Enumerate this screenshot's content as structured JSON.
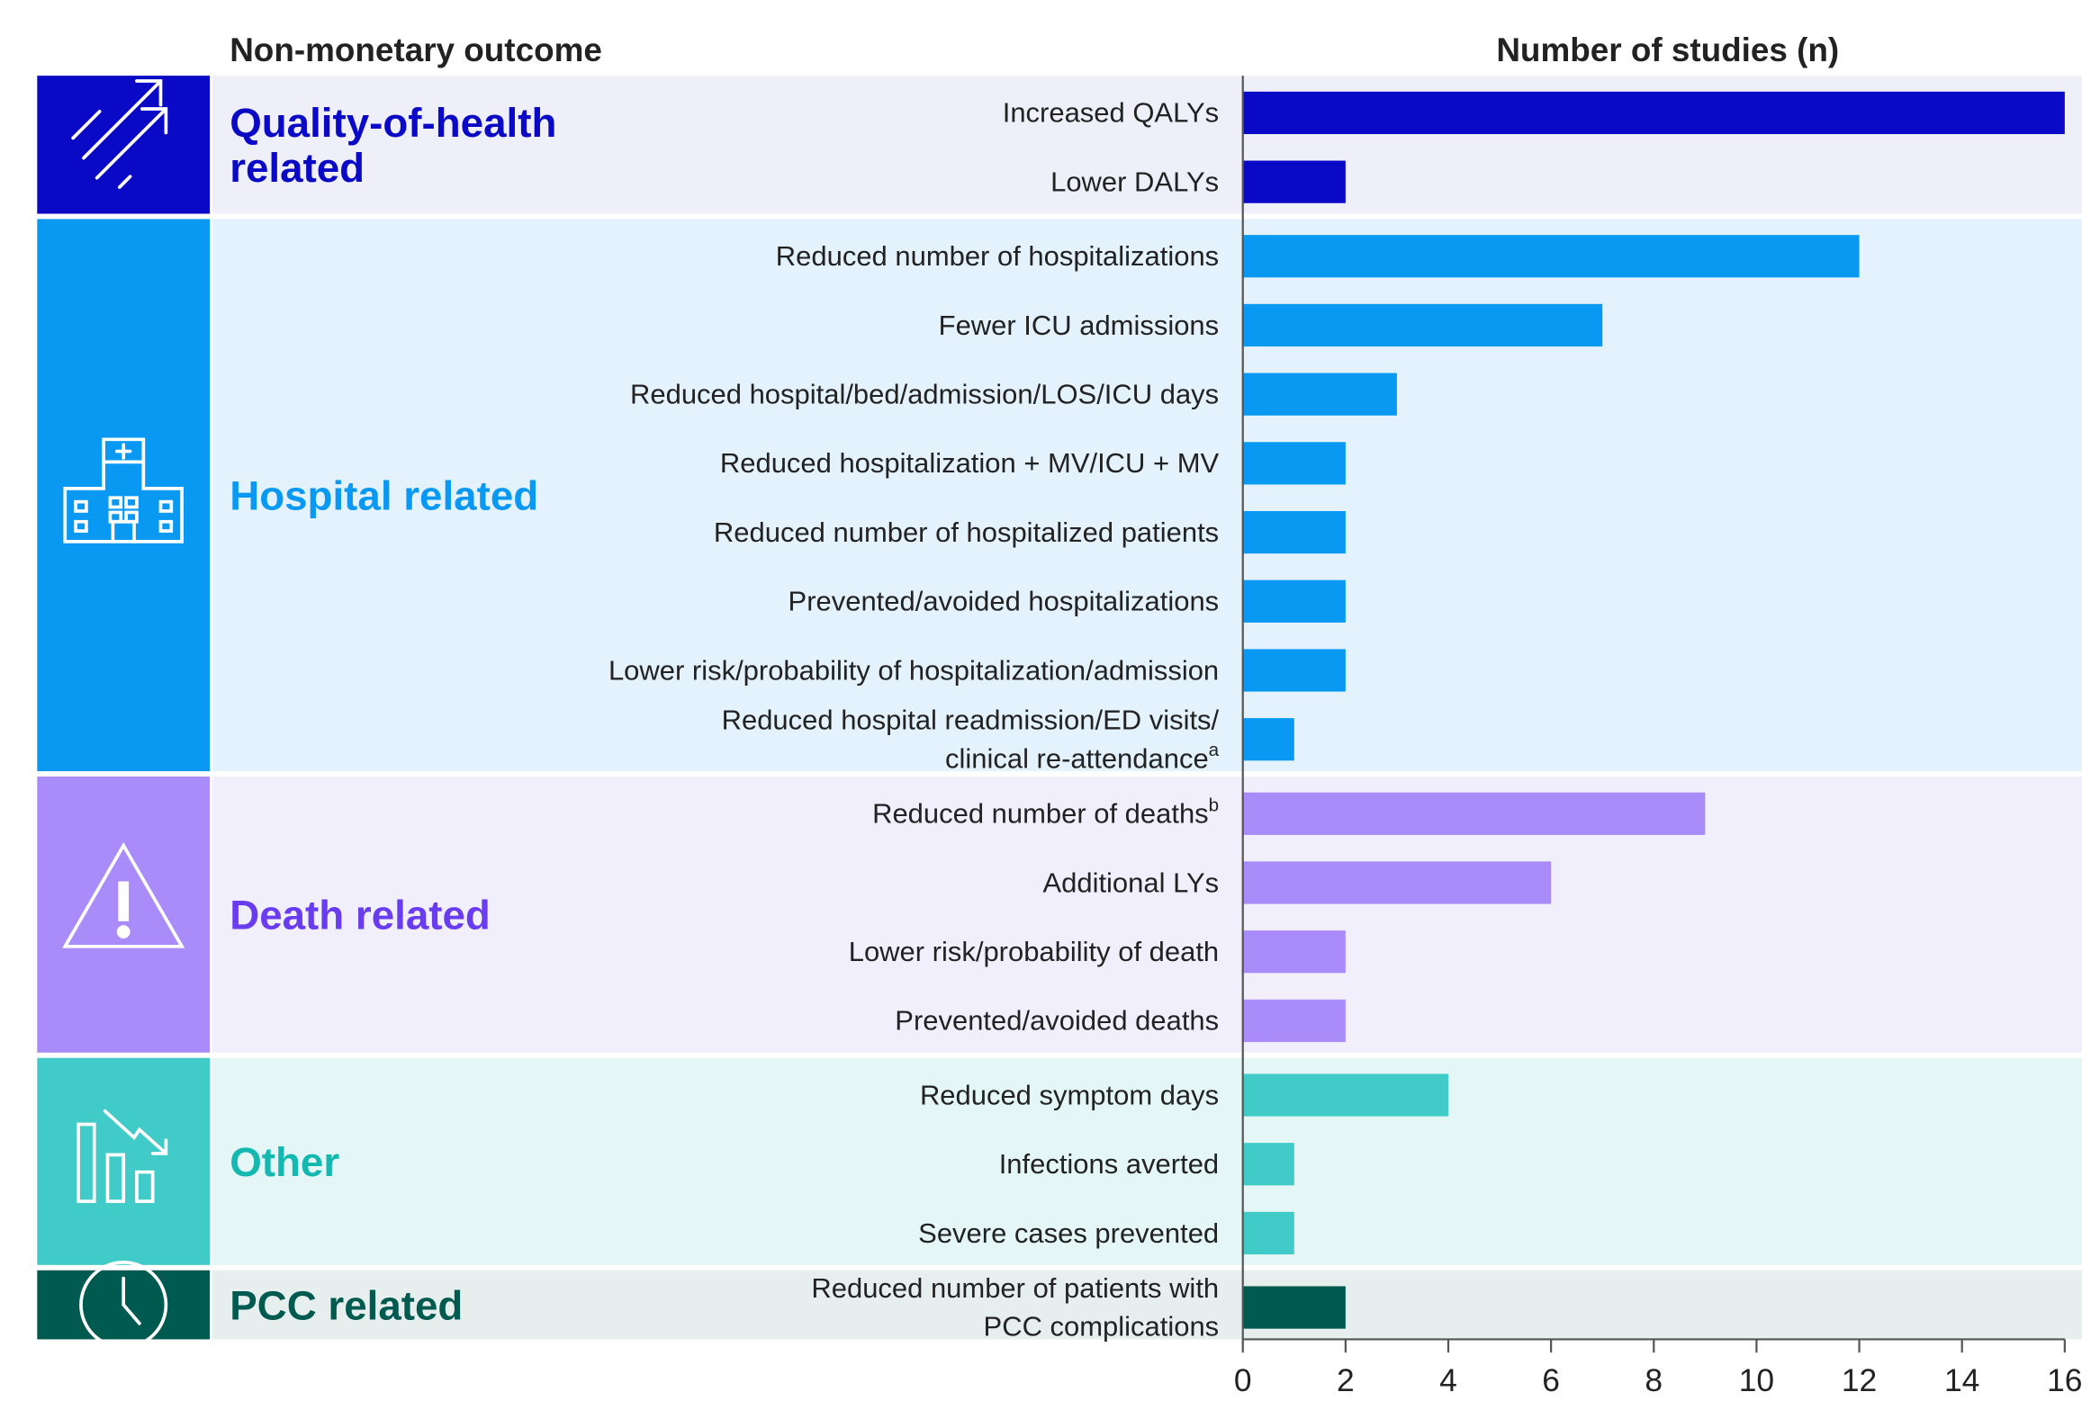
{
  "chart_data": {
    "type": "bar",
    "orientation": "horizontal",
    "left_header": "Non-monetary outcome",
    "x_label": "Number of studies (n)",
    "xlim": [
      0,
      16
    ],
    "xticks": [
      0,
      2,
      4,
      6,
      8,
      10,
      12,
      14,
      16
    ],
    "groups": [
      {
        "name": [
          "Quality-of-health",
          "related"
        ],
        "color": "#0909c6",
        "text_color": "#0909c6",
        "background": "#efeffa",
        "categories": [
          [
            "Increased QALYs"
          ],
          [
            "Lower DALYs"
          ]
        ],
        "notes": [
          null,
          null
        ],
        "values": [
          16,
          2
        ]
      },
      {
        "name": [
          "Hospital related"
        ],
        "color": "#0a99f2",
        "text_color": "#0a99f2",
        "background": "#e3f2fc",
        "categories": [
          [
            "Reduced number of hospitalizations"
          ],
          [
            "Fewer ICU admissions"
          ],
          [
            "Reduced hospital/bed/admission/LOS/ICU days"
          ],
          [
            "Reduced hospitalization + MV/ICU + MV"
          ],
          [
            "Reduced number of hospitalized patients"
          ],
          [
            "Prevented/avoided hospitalizations"
          ],
          [
            "Lower risk/probability of hospitalization/admission"
          ],
          [
            "Reduced hospital readmission/ED visits/",
            "clinical re-attendance"
          ]
        ],
        "notes": [
          null,
          null,
          null,
          null,
          null,
          null,
          null,
          "a"
        ],
        "values": [
          12,
          7,
          3,
          2,
          2,
          2,
          2,
          1
        ]
      },
      {
        "name": [
          "Death related"
        ],
        "color": "#a98bfa",
        "text_color": "#6a3cf0",
        "background": "#f1effb",
        "categories": [
          [
            "Reduced number of deaths"
          ],
          [
            "Additional LYs"
          ],
          [
            "Lower risk/probability of death"
          ],
          [
            "Prevented/avoided deaths"
          ]
        ],
        "notes": [
          "b",
          null,
          null,
          null
        ],
        "values": [
          9,
          6,
          2,
          2
        ]
      },
      {
        "name": [
          "Other"
        ],
        "color": "#40cbc9",
        "text_color": "#13b8b0",
        "background": "#e4f6f6",
        "categories": [
          [
            "Reduced symptom days"
          ],
          [
            "Infections averted"
          ],
          [
            "Severe cases prevented"
          ]
        ],
        "notes": [
          null,
          null,
          null
        ],
        "values": [
          4,
          1,
          1
        ]
      },
      {
        "name": [
          "PCC related"
        ],
        "color": "#005a50",
        "text_color": "#005a50",
        "background": "#e6efee",
        "categories": [
          [
            "Reduced number of patients with",
            "PCC complications"
          ]
        ],
        "notes": [
          null
        ],
        "values": [
          2
        ]
      }
    ]
  }
}
